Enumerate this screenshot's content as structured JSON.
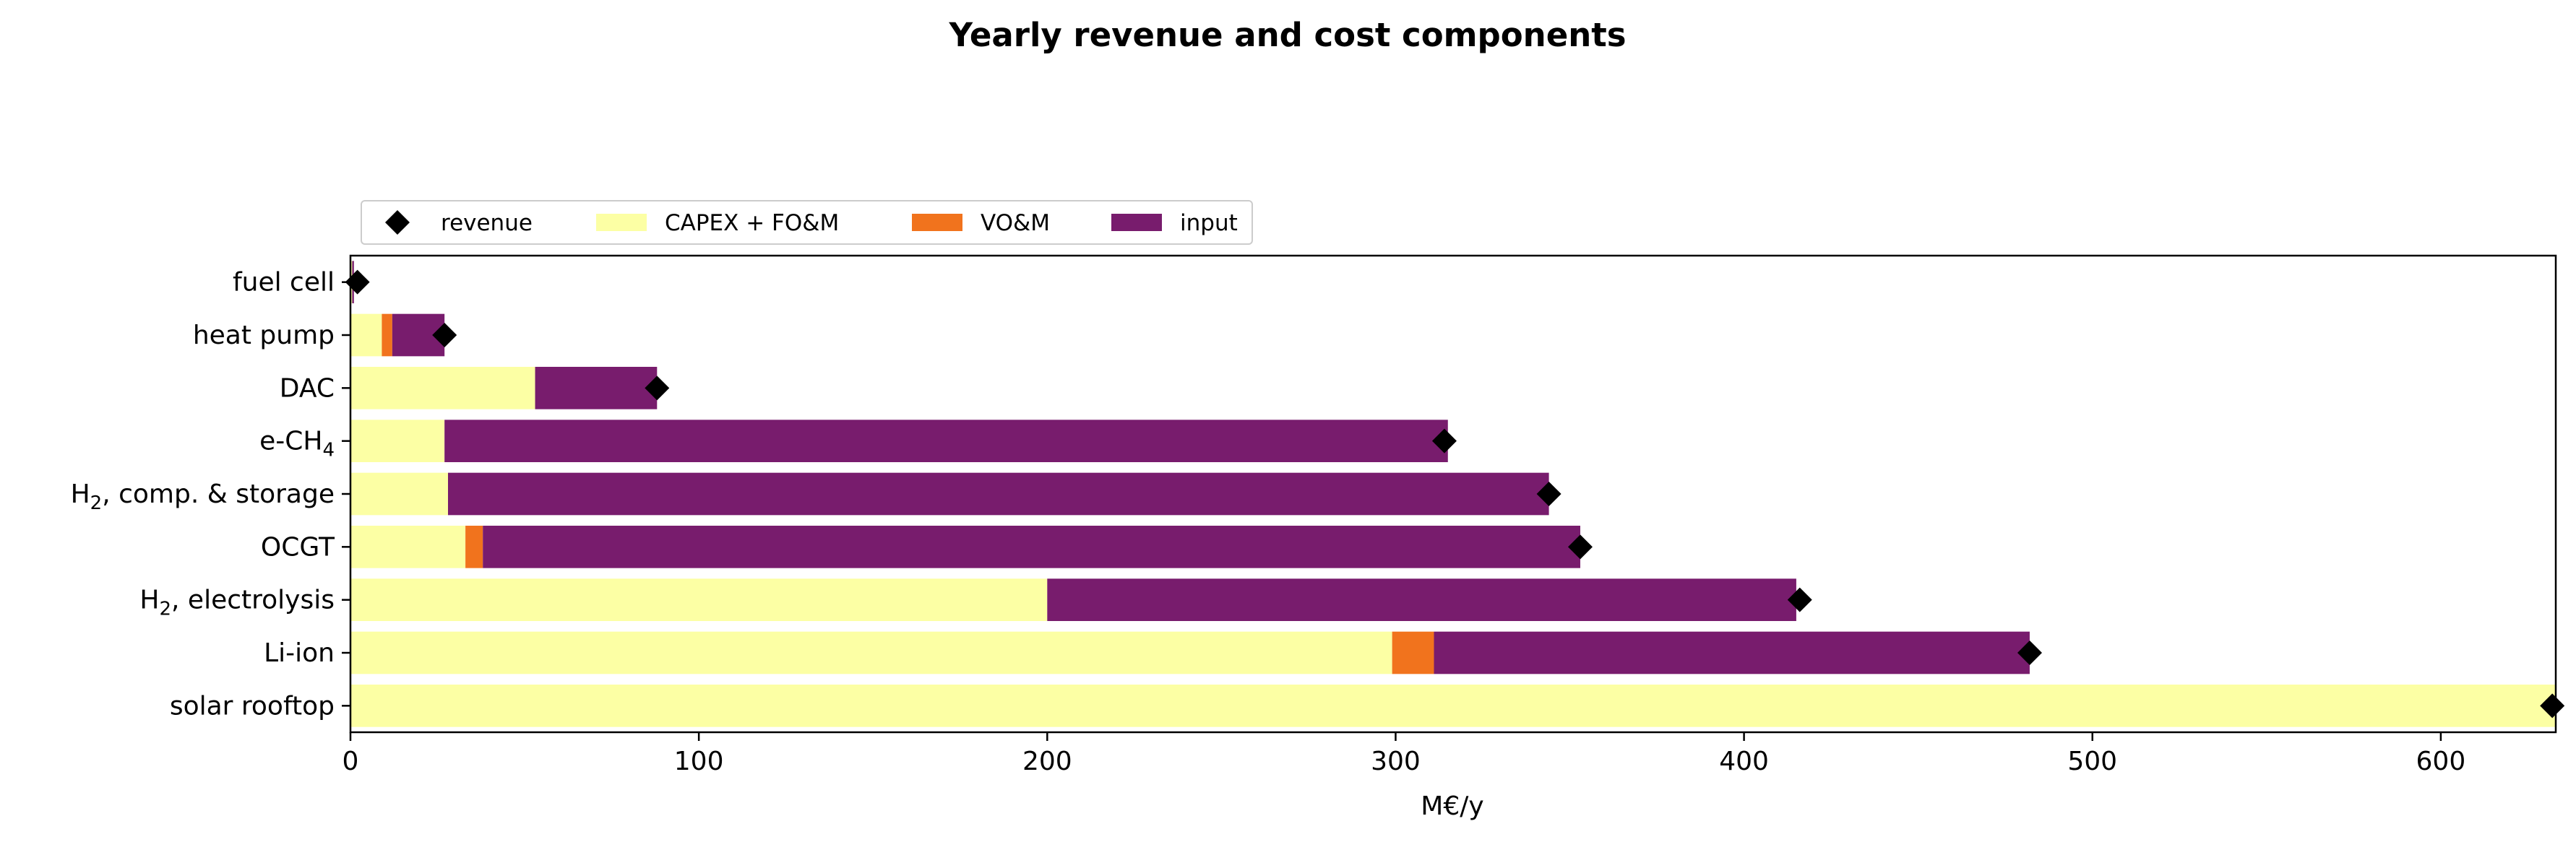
{
  "chart_data": {
    "type": "bar",
    "orientation": "horizontal",
    "stacked": true,
    "title": "Yearly revenue and cost components",
    "xlabel": "M€/y",
    "ylabel": "",
    "xlim": [
      0,
      633
    ],
    "xticks": [
      0,
      100,
      200,
      300,
      400,
      500,
      600
    ],
    "legend_position": "top-left, above axes",
    "grid": false,
    "categories": [
      {
        "label": "fuel cell"
      },
      {
        "label": "heat pump"
      },
      {
        "label": "DAC"
      },
      {
        "label": "e-CH",
        "sub": "4",
        "suffix": ""
      },
      {
        "label": "H",
        "sub": "2",
        "suffix": ", comp. & storage"
      },
      {
        "label": "OCGT"
      },
      {
        "label": "H",
        "sub": "2",
        "suffix": ", electrolysis"
      },
      {
        "label": "Li-ion"
      },
      {
        "label": "solar rooftop"
      }
    ],
    "series": [
      {
        "name": "CAPEX + FO&M",
        "color": "#fcffa4",
        "values": [
          0.5,
          9,
          53,
          27,
          28,
          33,
          200,
          299,
          633
        ]
      },
      {
        "name": "VO&M",
        "color": "#f1731d",
        "values": [
          0,
          3,
          0,
          0,
          0,
          5,
          0,
          12,
          0
        ]
      },
      {
        "name": "input",
        "color": "#781c6d",
        "values": [
          0.5,
          15,
          35,
          288,
          316,
          315,
          215,
          171,
          0
        ]
      }
    ],
    "revenue": {
      "name": "revenue",
      "color": "#000000",
      "marker": "diamond",
      "values": [
        2,
        27,
        88,
        314,
        344,
        353,
        416,
        482,
        632
      ]
    }
  }
}
